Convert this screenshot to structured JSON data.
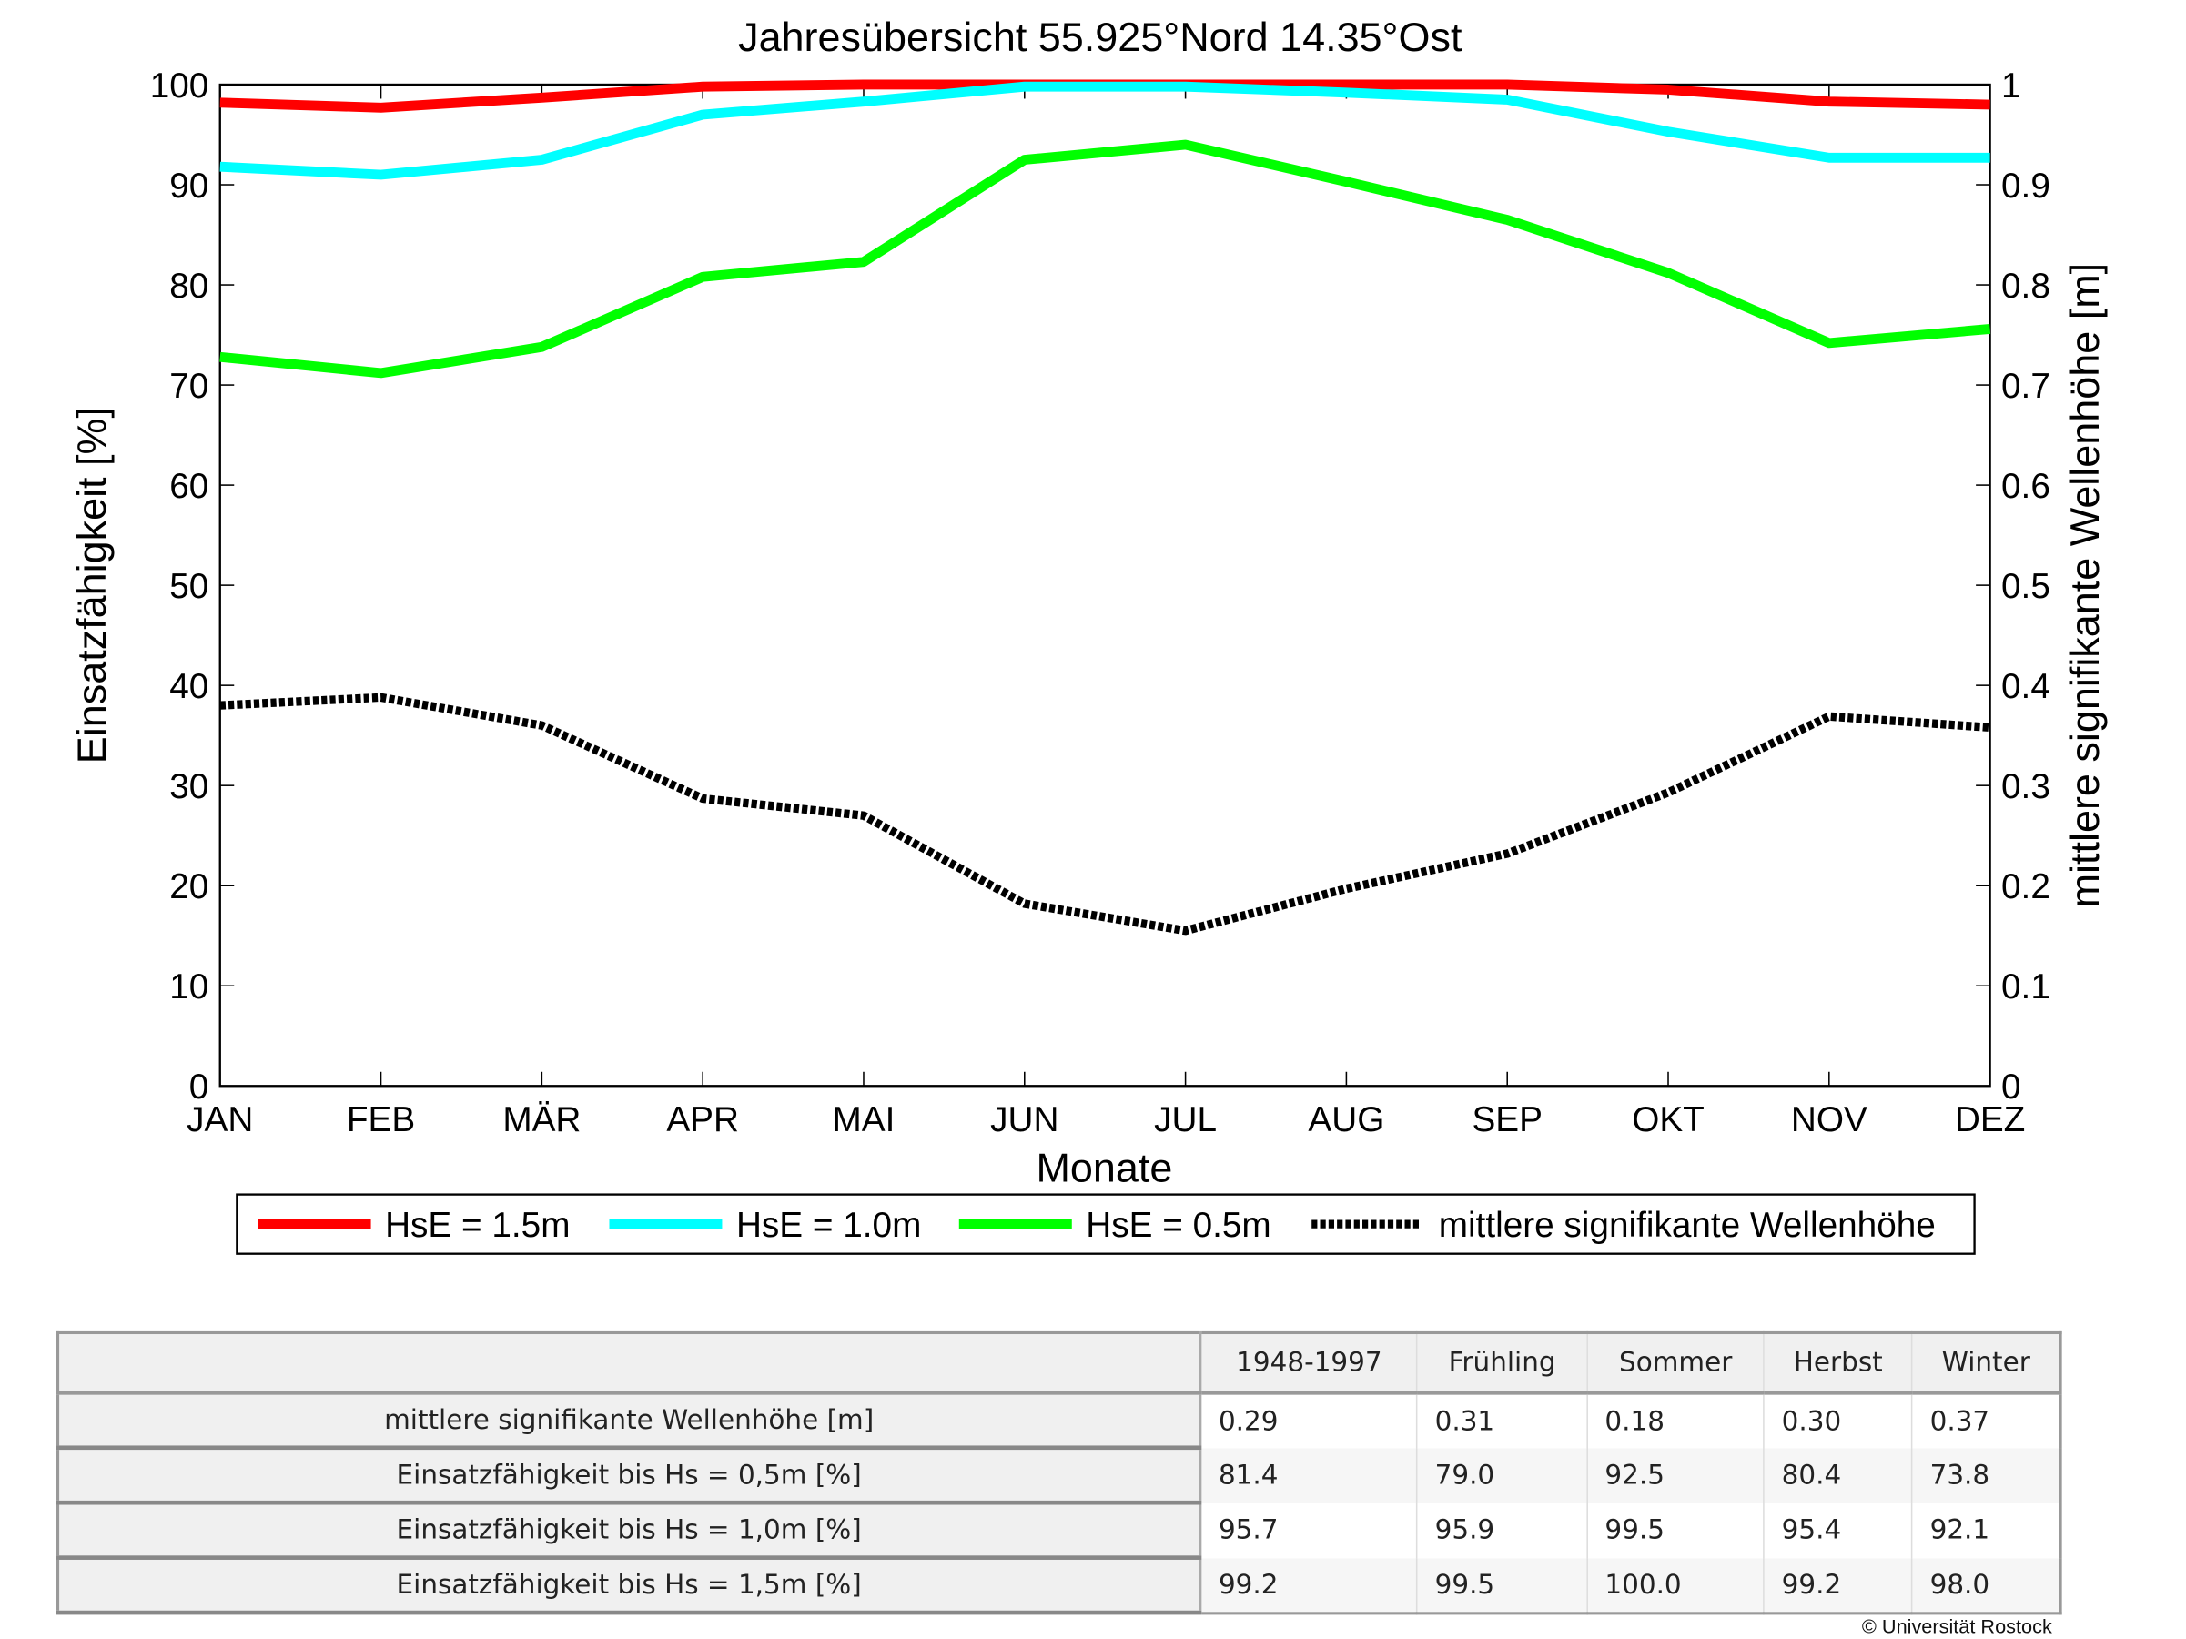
{
  "chart_data": {
    "type": "line",
    "title": "Jahresübersicht  55.925°Nord  14.35°Ost",
    "xlabel": "Monate",
    "ylabel": "Einsatzfähigkeit [%]",
    "y2label": "mittlere signifikante Wellenhöhe [m]",
    "categories": [
      "JAN",
      "FEB",
      "MÄR",
      "APR",
      "MAI",
      "JUN",
      "JUL",
      "AUG",
      "SEP",
      "OKT",
      "NOV",
      "DEZ"
    ],
    "ylim": [
      0,
      100
    ],
    "y2lim": [
      0,
      1
    ],
    "yticks": [
      "0",
      "10",
      "20",
      "30",
      "40",
      "50",
      "60",
      "70",
      "80",
      "90",
      "100"
    ],
    "y2ticks": [
      "0",
      "0.1",
      "0.2",
      "0.3",
      "0.4",
      "0.5",
      "0.6",
      "0.7",
      "0.8",
      "0.9",
      "1"
    ],
    "legend_position": "bottom",
    "series": [
      {
        "name": "HsE = 1.5m",
        "axis": "left",
        "color": "#ff0000",
        "style": "solid",
        "values": [
          98.2,
          97.7,
          98.7,
          99.8,
          100,
          100,
          100,
          100,
          100,
          99.5,
          98.3,
          98.0
        ]
      },
      {
        "name": "HsE = 1.0m",
        "axis": "left",
        "color": "#00ffff",
        "style": "solid",
        "values": [
          91.8,
          91.0,
          92.5,
          97.0,
          98.3,
          99.8,
          99.8,
          99.2,
          98.5,
          95.3,
          92.7,
          92.7
        ]
      },
      {
        "name": "HsE = 0.5m",
        "axis": "left",
        "color": "#00ff00",
        "style": "solid",
        "values": [
          72.8,
          71.2,
          73.8,
          80.8,
          82.3,
          92.5,
          94.0,
          90.3,
          86.5,
          81.2,
          74.2,
          75.6
        ]
      },
      {
        "name": "mittlere signifikante Wellenhöhe",
        "axis": "right",
        "color": "#000000",
        "style": "dotted",
        "values": [
          0.38,
          0.388,
          0.36,
          0.287,
          0.27,
          0.182,
          0.155,
          0.197,
          0.232,
          0.293,
          0.369,
          0.358
        ]
      }
    ]
  },
  "table": {
    "headers": [
      "",
      "1948-1997",
      "Frühling",
      "Sommer",
      "Herbst",
      "Winter"
    ],
    "rows": [
      {
        "label": "mittlere signifikante Wellenhöhe [m]",
        "values": [
          "0.29",
          "0.31",
          "0.18",
          "0.30",
          "0.37"
        ]
      },
      {
        "label": "Einsatzfähigkeit bis Hs = 0,5m [%]",
        "values": [
          "81.4",
          "79.0",
          "92.5",
          "80.4",
          "73.8"
        ]
      },
      {
        "label": "Einsatzfähigkeit bis Hs = 1,0m [%]",
        "values": [
          "95.7",
          "95.9",
          "99.5",
          "95.4",
          "92.1"
        ]
      },
      {
        "label": "Einsatzfähigkeit bis Hs = 1,5m [%]",
        "values": [
          "99.2",
          "99.5",
          "100.0",
          "99.2",
          "98.0"
        ]
      }
    ]
  },
  "copyright": "© Universität Rostock"
}
